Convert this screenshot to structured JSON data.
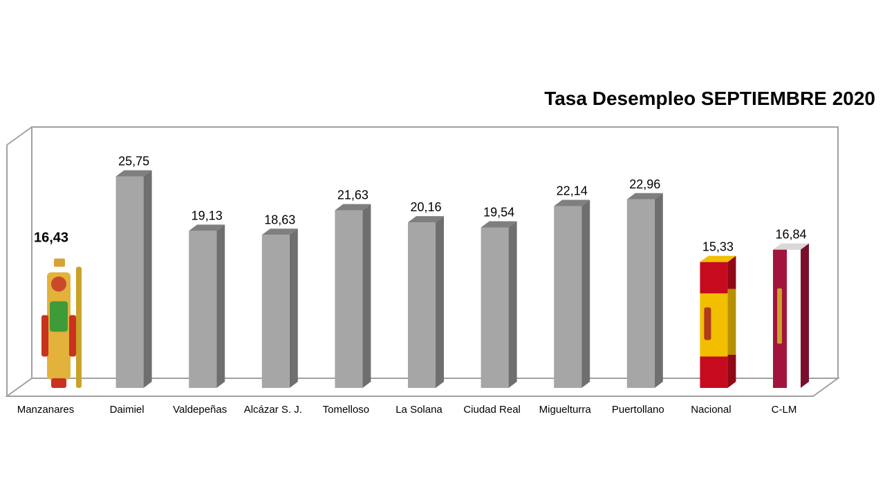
{
  "chart_data": {
    "type": "bar",
    "title": "Tasa Desempleo SEPTIEMBRE 2020",
    "categories": [
      "Manzanares",
      "Daimiel",
      "Valdepeñas",
      "Alcázar S. J.",
      "Tomelloso",
      "La Solana",
      "Ciudad Real",
      "Miguelturra",
      "Puertollano",
      "Nacional",
      "C-LM"
    ],
    "values": [
      16.43,
      25.75,
      19.13,
      18.63,
      21.63,
      20.16,
      19.54,
      22.14,
      22.96,
      15.33,
      16.84
    ],
    "value_labels": [
      "16,43",
      "25,75",
      "19,13",
      "18,63",
      "21,63",
      "20,16",
      "19,54",
      "22,14",
      "22,96",
      "15,33",
      "16,84"
    ],
    "bar_fills": [
      "coat-of-arms",
      "gray",
      "gray",
      "gray",
      "gray",
      "gray",
      "gray",
      "gray",
      "gray",
      "spain-flag",
      "clm-flag"
    ],
    "highlighted_label_index": 0,
    "ylim": [
      0,
      30
    ],
    "grid": false,
    "legend": "none",
    "style": "3d-column",
    "colors": {
      "bar_front": "#a6a6a6",
      "bar_side": "#6f6f6f",
      "bar_top": "#7f7f7f",
      "frame": "#a0a0a0",
      "spain_red": "#c60b1e",
      "spain_yellow": "#f1bf00",
      "clm_crimson": "#a3143c",
      "clm_white": "#ffffff"
    }
  }
}
